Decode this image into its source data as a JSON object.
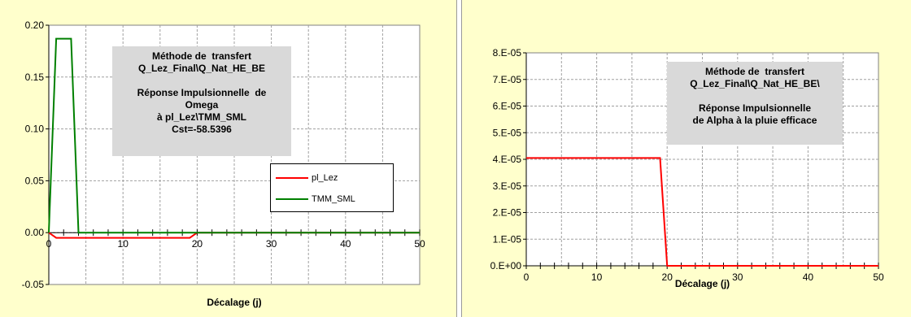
{
  "chart_data": [
    {
      "type": "line",
      "title": "",
      "xlabel": "Décalage (j)",
      "ylabel": "",
      "xlim": [
        0,
        50
      ],
      "ylim": [
        -0.05,
        0.2
      ],
      "x_ticks": [
        "0",
        "10",
        "20",
        "30",
        "40",
        "50"
      ],
      "y_ticks": [
        "0.20",
        "0.15",
        "0.10",
        "0.05",
        "0.00",
        "-0.05"
      ],
      "grid": true,
      "annotation": [
        "Méthode de  transfert",
        "Q_Lez_Final\\Q_Nat_HE_BE",
        "",
        "Réponse Impulsionnelle  de",
        "Omega",
        "à pl_Lez\\TMM_SML",
        "Cst=-58.5396"
      ],
      "legend_position": "right",
      "series": [
        {
          "name": "pl_Lez",
          "color": "#ff0000",
          "x": [
            0,
            1,
            19,
            20,
            50
          ],
          "y": [
            0,
            -0.005,
            -0.005,
            0,
            0
          ]
        },
        {
          "name": "TMM_SML",
          "color": "#008000",
          "x": [
            0,
            1,
            3,
            4,
            50
          ],
          "y": [
            0,
            0.187,
            0.187,
            0,
            0
          ]
        }
      ]
    },
    {
      "type": "line",
      "title": "",
      "xlabel": "Décalage (j)",
      "ylabel": "",
      "xlim": [
        0,
        50
      ],
      "ylim": [
        0,
        8e-05
      ],
      "x_ticks": [
        "0",
        "10",
        "20",
        "30",
        "40",
        "50"
      ],
      "y_ticks": [
        "8.E-05",
        "7.E-05",
        "6.E-05",
        "5.E-05",
        "4.E-05",
        "3.E-05",
        "2.E-05",
        "1.E-05",
        "0.E+00"
      ],
      "grid": true,
      "annotation": [
        "Méthode de  transfert",
        "Q_Lez_Final\\Q_Nat_HE_BE\\",
        "",
        "Réponse Impulsionnelle",
        "de Alpha à la pluie efficace"
      ],
      "series": [
        {
          "color": "#ff0000",
          "x": [
            0,
            19,
            20,
            50
          ],
          "y": [
            4.05e-05,
            4.05e-05,
            0,
            0
          ]
        }
      ]
    }
  ]
}
